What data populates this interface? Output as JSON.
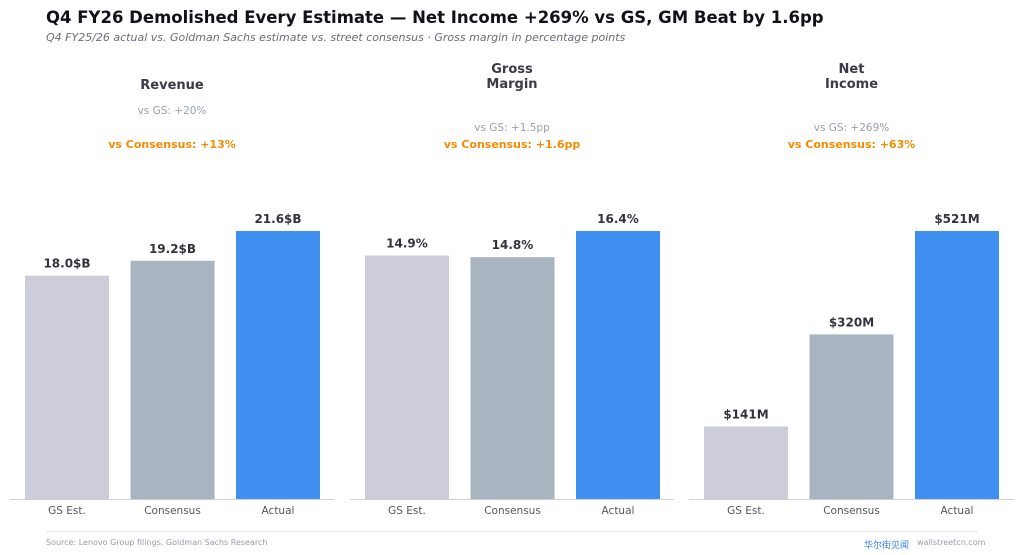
{
  "title": "Q4 FY26 Demolished Every Estimate — Net Income +269% vs GS, GM Beat by 1.6pp",
  "subtitle": "Q4 FY25/26 actual vs. Goldman Sachs estimate vs. street consensus  ·  Gross margin in percentage points",
  "footer": {
    "source": "Source: Lenovo Group filings, Goldman Sachs Research",
    "brand": "华尔街见闻",
    "site": "wallstreetcn.com"
  },
  "colors": {
    "gs": "#cccdd8",
    "consensus": "#a8b5c1",
    "actual": "#3f8ff0",
    "beat_text": "#f28c00"
  },
  "chart_data": [
    {
      "type": "bar",
      "title": [
        "Revenue"
      ],
      "vs_gs": "vs GS: +20%",
      "vs_consensus": "vs Consensus: +13%",
      "categories": [
        "GS Est.",
        "Consensus",
        "Actual"
      ],
      "values": [
        18.0,
        19.2,
        21.6
      ],
      "value_labels": [
        "18.0$B",
        "19.2$B",
        "21.6$B"
      ]
    },
    {
      "type": "bar",
      "title": [
        "Gross",
        "Margin"
      ],
      "vs_gs": "vs GS: +1.5pp",
      "vs_consensus": "vs Consensus: +1.6pp",
      "categories": [
        "GS Est.",
        "Consensus",
        "Actual"
      ],
      "values": [
        14.9,
        14.8,
        16.4
      ],
      "value_labels": [
        "14.9%",
        "14.8%",
        "16.4%"
      ]
    },
    {
      "type": "bar",
      "title": [
        "Net",
        "Income"
      ],
      "vs_gs": "vs GS: +269%",
      "vs_consensus": "vs Consensus: +63%",
      "categories": [
        "GS Est.",
        "Consensus",
        "Actual"
      ],
      "values": [
        141,
        320,
        521
      ],
      "value_labels": [
        "$141M",
        "$320M",
        "$521M"
      ]
    }
  ]
}
